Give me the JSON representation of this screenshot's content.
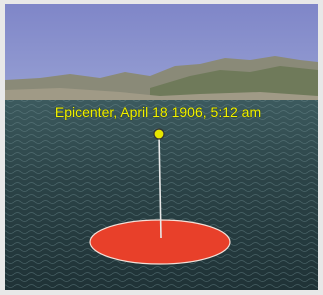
{
  "placemark": {
    "label": "Epicenter, April 18 1906, 5:12 am"
  }
}
